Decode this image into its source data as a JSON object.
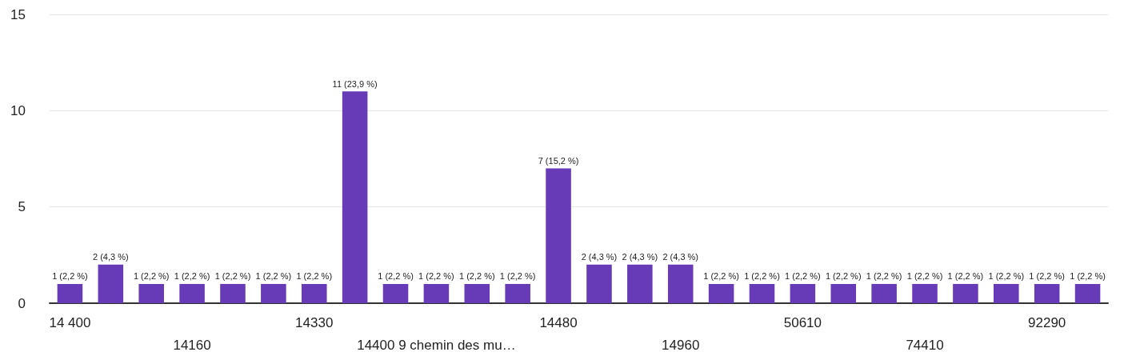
{
  "chart_data": {
    "type": "bar",
    "categories": [
      "14 400",
      null,
      null,
      "14160",
      null,
      null,
      "14330",
      null,
      null,
      "14400 9 chemin des mu…",
      null,
      null,
      "14480",
      null,
      null,
      "14960",
      null,
      null,
      "50610",
      null,
      null,
      "74410",
      null,
      null,
      "92290",
      null
    ],
    "values": [
      1,
      2,
      1,
      1,
      1,
      1,
      1,
      11,
      1,
      1,
      1,
      1,
      7,
      2,
      2,
      2,
      1,
      1,
      1,
      1,
      1,
      1,
      1,
      1,
      1,
      1
    ],
    "value_labels": [
      "1 (2,2 %)",
      "2 (4,3 %)",
      "1 (2,2 %)",
      "1 (2,2 %)",
      "1 (2,2 %)",
      "1 (2,2 %)",
      "1 (2,2 %)",
      "11 (23,9 %)",
      "1 (2,2 %)",
      "1 (2,2 %)",
      "1 (2,2 %)",
      "1 (2,2 %)",
      "7 (15,2 %)",
      "2 (4,3 %)",
      "2 (4,3 %)",
      "2 (4,3 %)",
      "1 (2,2 %)",
      "1 (2,2 %)",
      "1 (2,2 %)",
      "1 (2,2 %)",
      "1 (2,2 %)",
      "1 (2,2 %)",
      "1 (2,2 %)",
      "1 (2,2 %)",
      "1 (2,2 %)",
      "1 (2,2 %)"
    ],
    "color": "#673ab7",
    "ylim": [
      0,
      15
    ],
    "yticks": [
      0,
      5,
      10,
      15
    ],
    "grid": "y"
  }
}
